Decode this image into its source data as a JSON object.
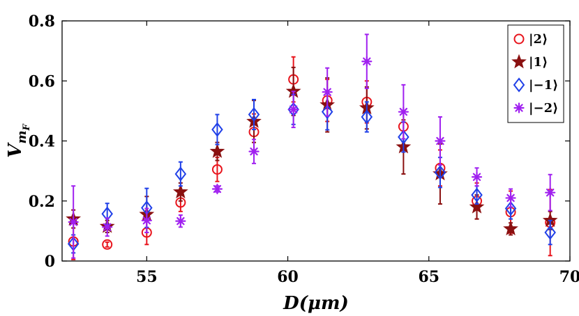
{
  "chart_data": {
    "type": "scatter",
    "title": "",
    "xlabel": "D(μm)",
    "ylabel": "V",
    "ylabel_subscript": "m",
    "ylabel_subsubscript": "F",
    "xlim": [
      52,
      70
    ],
    "ylim": [
      0,
      0.8
    ],
    "xticks": [
      55,
      60,
      65,
      70
    ],
    "yticks": [
      0,
      0.2,
      0.4,
      0.6,
      0.8
    ],
    "xtick_labels": [
      "55",
      "60",
      "65",
      "70"
    ],
    "ytick_labels": [
      "0",
      "0.2",
      "0.4",
      "0.6",
      "0.8"
    ],
    "legend_position": "top-right",
    "x": [
      52.4,
      53.6,
      55.0,
      56.2,
      57.5,
      58.8,
      60.2,
      61.4,
      62.8,
      64.1,
      65.4,
      66.7,
      67.9,
      69.3
    ],
    "series": [
      {
        "name": "|2⟩",
        "marker": "circle",
        "color": "#e8141c",
        "dx": 0.0,
        "values": [
          0.065,
          0.055,
          0.095,
          0.195,
          0.305,
          0.43,
          0.605,
          0.535,
          0.53,
          0.448,
          0.31,
          0.2,
          0.163,
          0.128
        ],
        "err": [
          0.06,
          0.008,
          0.04,
          0.03,
          0.04,
          0.06,
          0.075,
          0.07,
          0.07,
          0.05,
          0.06,
          0.06,
          0.07,
          0.11
        ]
      },
      {
        "name": "|1⟩",
        "marker": "star",
        "color": "#8a1010",
        "dx": 0.0,
        "values": [
          0.14,
          0.115,
          0.155,
          0.23,
          0.365,
          0.465,
          0.565,
          0.52,
          0.51,
          0.38,
          0.29,
          0.18,
          0.107,
          0.135
        ],
        "err": [
          0.03,
          0.02,
          0.06,
          0.03,
          0.03,
          0.07,
          0.08,
          0.09,
          0.07,
          0.09,
          0.1,
          0.04,
          0.02,
          0.03
        ]
      },
      {
        "name": "|−1⟩",
        "marker": "diamond",
        "color": "#2040e8",
        "dx": 0.0,
        "values": [
          0.057,
          0.157,
          0.177,
          0.29,
          0.438,
          0.488,
          0.505,
          0.497,
          0.48,
          0.413,
          0.295,
          0.22,
          0.175,
          0.095
        ],
        "err": [
          0.03,
          0.035,
          0.065,
          0.04,
          0.05,
          0.05,
          0.05,
          0.06,
          0.05,
          0.05,
          0.05,
          0.03,
          0.035,
          0.04
        ]
      },
      {
        "name": "|−2⟩",
        "marker": "asterisk",
        "color": "#a020f0",
        "dx": 0.0,
        "values": [
          0.13,
          0.113,
          0.135,
          0.133,
          0.24,
          0.365,
          0.505,
          0.563,
          0.665,
          0.497,
          0.4,
          0.28,
          0.21,
          0.228
        ],
        "err": [
          0.12,
          0.03,
          0.04,
          0.02,
          0.01,
          0.04,
          0.06,
          0.08,
          0.09,
          0.09,
          0.08,
          0.03,
          0.03,
          0.06
        ]
      }
    ]
  }
}
